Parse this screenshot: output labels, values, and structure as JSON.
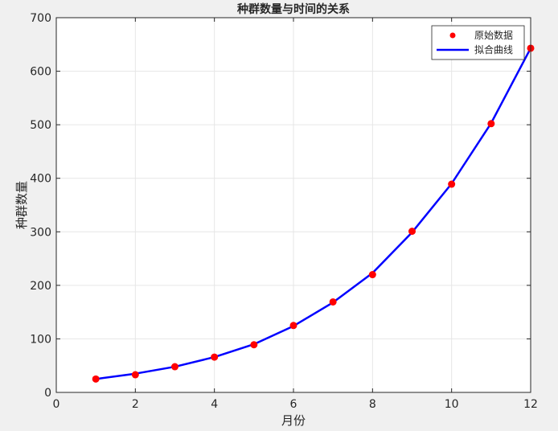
{
  "chart_data": {
    "type": "line",
    "title": "种群数量与时间的关系",
    "xlabel": "月份",
    "ylabel": "种群数量",
    "xlim": [
      0,
      12
    ],
    "ylim": [
      0,
      700
    ],
    "xticks": [
      0,
      2,
      4,
      6,
      8,
      10,
      12
    ],
    "yticks": [
      0,
      100,
      200,
      300,
      400,
      500,
      600,
      700
    ],
    "grid": true,
    "legend_position": "top-right",
    "series": [
      {
        "name": "原始数据",
        "kind": "scatter",
        "color": "#ff0000",
        "x": [
          1,
          2,
          3,
          4,
          5,
          6,
          7,
          8,
          9,
          10,
          11,
          12
        ],
        "y": [
          25,
          33,
          48,
          66,
          89,
          125,
          169,
          220,
          301,
          389,
          502,
          643
        ]
      },
      {
        "name": "拟合曲线",
        "kind": "line",
        "color": "#0000ff",
        "x": [
          1,
          2,
          3,
          4,
          5,
          6,
          7,
          8,
          9,
          10,
          11,
          12
        ],
        "y": [
          25,
          35,
          48,
          66,
          90,
          124,
          168,
          223,
          299,
          390,
          503,
          643
        ]
      }
    ]
  }
}
